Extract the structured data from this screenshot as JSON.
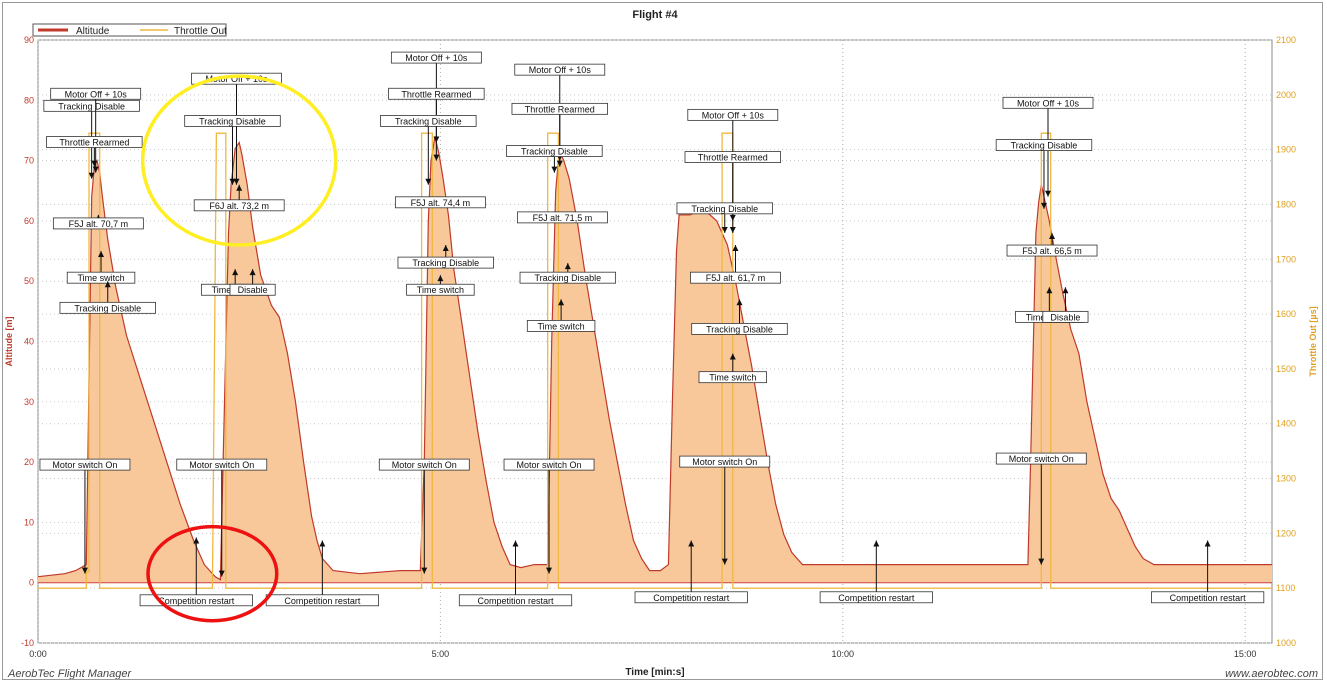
{
  "chart_data": {
    "type": "area",
    "title": "Flight #4",
    "xlabel": "Time [min:s]",
    "ylabel_left": "Altitude [m]",
    "ylabel_right": "Throttle Out [µs]",
    "footer_left": "AerobTec Flight Manager",
    "footer_right": "www.aerobtec.com",
    "x_ticks": [
      {
        "v": 0,
        "label": "0:00"
      },
      {
        "v": 300,
        "label": "5:00"
      },
      {
        "v": 600,
        "label": "10:00"
      },
      {
        "v": 900,
        "label": "15:00"
      }
    ],
    "xlim": [
      0,
      920
    ],
    "ylim_left": [
      -10,
      90
    ],
    "y_ticks_left": [
      -10,
      0,
      10,
      20,
      30,
      40,
      50,
      60,
      70,
      80,
      90
    ],
    "ylim_right": [
      1000,
      2100
    ],
    "y_ticks_right": [
      1000,
      1100,
      1200,
      1300,
      1400,
      1500,
      1600,
      1700,
      1800,
      1900,
      2000,
      2100
    ],
    "grid": true,
    "legend_position": "top-left",
    "colors": {
      "altitude_fill": "#f8c89a",
      "altitude_line": "#c0392b",
      "throttle": "#f0b840",
      "axis_left": "#c0392b",
      "axis_right": "#e0a020"
    },
    "series": [
      {
        "name": "Altitude",
        "kind": "area",
        "points": [
          [
            0,
            1
          ],
          [
            20,
            1.5
          ],
          [
            28,
            2
          ],
          [
            36,
            3
          ],
          [
            40,
            64
          ],
          [
            42,
            69
          ],
          [
            44,
            70
          ],
          [
            46,
            68
          ],
          [
            48,
            64
          ],
          [
            52,
            57
          ],
          [
            58,
            49
          ],
          [
            66,
            41
          ],
          [
            76,
            34
          ],
          [
            86,
            27
          ],
          [
            96,
            20
          ],
          [
            106,
            13
          ],
          [
            116,
            7
          ],
          [
            124,
            3
          ],
          [
            132,
            1
          ],
          [
            136,
            0.5
          ],
          [
            138,
            20
          ],
          [
            142,
            58
          ],
          [
            144,
            66
          ],
          [
            147,
            72
          ],
          [
            150,
            73
          ],
          [
            152,
            71
          ],
          [
            156,
            66
          ],
          [
            160,
            59
          ],
          [
            166,
            51
          ],
          [
            174,
            46
          ],
          [
            180,
            44
          ],
          [
            186,
            38
          ],
          [
            192,
            30
          ],
          [
            198,
            20
          ],
          [
            204,
            11
          ],
          [
            208,
            7
          ],
          [
            212,
            4
          ],
          [
            220,
            2
          ],
          [
            240,
            1.5
          ],
          [
            270,
            2
          ],
          [
            285,
            2
          ],
          [
            288,
            20
          ],
          [
            291,
            60
          ],
          [
            293,
            70
          ],
          [
            296,
            74
          ],
          [
            299,
            71
          ],
          [
            302,
            67
          ],
          [
            306,
            61
          ],
          [
            310,
            52
          ],
          [
            316,
            43
          ],
          [
            322,
            34
          ],
          [
            328,
            25
          ],
          [
            334,
            17
          ],
          [
            340,
            10
          ],
          [
            346,
            6
          ],
          [
            352,
            3
          ],
          [
            360,
            2.5
          ],
          [
            370,
            3
          ],
          [
            380,
            3
          ],
          [
            383,
            40
          ],
          [
            386,
            65
          ],
          [
            388,
            70
          ],
          [
            390,
            71
          ],
          [
            392,
            70
          ],
          [
            396,
            67
          ],
          [
            402,
            60
          ],
          [
            408,
            51
          ],
          [
            414,
            43
          ],
          [
            420,
            35
          ],
          [
            426,
            27
          ],
          [
            432,
            20
          ],
          [
            438,
            13
          ],
          [
            444,
            7
          ],
          [
            450,
            4
          ],
          [
            456,
            2
          ],
          [
            464,
            2
          ],
          [
            470,
            3
          ],
          [
            473,
            30
          ],
          [
            476,
            55
          ],
          [
            478,
            61
          ],
          [
            486,
            61
          ],
          [
            496,
            62
          ],
          [
            506,
            60
          ],
          [
            514,
            56
          ],
          [
            520,
            50
          ],
          [
            526,
            43
          ],
          [
            532,
            36
          ],
          [
            538,
            28
          ],
          [
            544,
            20
          ],
          [
            550,
            13
          ],
          [
            556,
            8
          ],
          [
            562,
            5
          ],
          [
            570,
            3
          ],
          [
            600,
            3
          ],
          [
            640,
            3
          ],
          [
            680,
            3
          ],
          [
            738,
            3
          ],
          [
            740,
            20
          ],
          [
            744,
            58
          ],
          [
            746,
            63
          ],
          [
            748,
            66
          ],
          [
            750,
            64
          ],
          [
            754,
            60
          ],
          [
            758,
            55
          ],
          [
            764,
            48
          ],
          [
            770,
            42
          ],
          [
            776,
            38
          ],
          [
            782,
            30
          ],
          [
            788,
            24
          ],
          [
            794,
            18
          ],
          [
            800,
            14
          ],
          [
            806,
            12
          ],
          [
            812,
            9
          ],
          [
            818,
            6
          ],
          [
            824,
            4
          ],
          [
            832,
            3
          ],
          [
            850,
            3
          ],
          [
            870,
            3
          ],
          [
            900,
            3
          ],
          [
            920,
            3
          ]
        ]
      },
      {
        "name": "Throttle Out",
        "kind": "step",
        "points": [
          [
            0,
            1100
          ],
          [
            34,
            1100
          ],
          [
            34,
            1100
          ],
          [
            36,
            1100
          ],
          [
            36,
            1130
          ],
          [
            38,
            1130
          ],
          [
            38,
            1930
          ],
          [
            46,
            1930
          ],
          [
            46,
            1100
          ],
          [
            130,
            1100
          ],
          [
            130,
            1100
          ],
          [
            133,
            1930
          ],
          [
            140,
            1930
          ],
          [
            140,
            1100
          ],
          [
            286,
            1100
          ],
          [
            286,
            1930
          ],
          [
            294,
            1930
          ],
          [
            294,
            1100
          ],
          [
            380,
            1100
          ],
          [
            380,
            1930
          ],
          [
            388,
            1930
          ],
          [
            388,
            1100
          ],
          [
            510,
            1100
          ],
          [
            510,
            1930
          ],
          [
            518,
            1930
          ],
          [
            518,
            1100
          ],
          [
            748,
            1100
          ],
          [
            748,
            1930
          ],
          [
            755,
            1930
          ],
          [
            755,
            1100
          ],
          [
            920,
            1100
          ]
        ]
      }
    ],
    "annotations": [
      {
        "text": "Motor switch On",
        "x": 35,
        "y": 1.5,
        "ly": 19.5
      },
      {
        "text": "Tracking Disable",
        "x": 40,
        "y": 67,
        "ly": 79
      },
      {
        "text": "Motor Off + 10s",
        "x": 43,
        "y": 68,
        "ly": 81
      },
      {
        "text": "Throttle Rearmed",
        "x": 42,
        "y": 69,
        "ly": 73
      },
      {
        "text": "F5J alt. 70,7 m",
        "x": 45,
        "y": 61,
        "ly": 59.5
      },
      {
        "text": "Time switch",
        "x": 47,
        "y": 55,
        "ly": 50.5
      },
      {
        "text": "Tracking Disable",
        "x": 52,
        "y": 50,
        "ly": 45.5
      },
      {
        "text": "Motor switch On",
        "x": 137,
        "y": 1,
        "ly": 19.5
      },
      {
        "text": "Competition restart",
        "x": 118,
        "y": 7.5,
        "ly": -3
      },
      {
        "text": "Motor Off + 10s",
        "x": 148,
        "y": 66,
        "ly": 83.5
      },
      {
        "text": "Tracking Disable",
        "x": 145,
        "y": 66,
        "ly": 76.5
      },
      {
        "text": "F6J alt. 73,2 m",
        "x": 150,
        "y": 66,
        "ly": 62.5
      },
      {
        "text": "Time switch",
        "x": 147,
        "y": 52,
        "ly": 48.5
      },
      {
        "text": "Disable",
        "x": 160,
        "y": 52,
        "ly": 48.5
      },
      {
        "text": "Competition restart",
        "x": 212,
        "y": 7,
        "ly": -3
      },
      {
        "text": "Motor switch On",
        "x": 288,
        "y": 1.5,
        "ly": 19.5
      },
      {
        "text": "Motor Off + 10s",
        "x": 297,
        "y": 73,
        "ly": 87
      },
      {
        "text": "Throttle Rearmed",
        "x": 297,
        "y": 70,
        "ly": 81
      },
      {
        "text": "Tracking Disable",
        "x": 291,
        "y": 66,
        "ly": 76.5
      },
      {
        "text": "F5J alt. 74,4 m",
        "x": 300,
        "y": 64,
        "ly": 63
      },
      {
        "text": "Tracking Disable",
        "x": 304,
        "y": 56,
        "ly": 53
      },
      {
        "text": "Time switch",
        "x": 300,
        "y": 51,
        "ly": 48.5
      },
      {
        "text": "Motor switch On",
        "x": 381,
        "y": 1.5,
        "ly": 19.5
      },
      {
        "text": "Competition restart",
        "x": 356,
        "y": 7,
        "ly": -3
      },
      {
        "text": "Motor Off + 10s",
        "x": 389,
        "y": 70,
        "ly": 85
      },
      {
        "text": "Throttle Rearmed",
        "x": 389,
        "y": 69,
        "ly": 78.5
      },
      {
        "text": "Tracking Disable",
        "x": 385,
        "y": 68,
        "ly": 71.5
      },
      {
        "text": "F5J alt. 71,5 m",
        "x": 391,
        "y": 60,
        "ly": 60.5
      },
      {
        "text": "Tracking Disable",
        "x": 395,
        "y": 53,
        "ly": 50.5
      },
      {
        "text": "Time switch",
        "x": 390,
        "y": 47,
        "ly": 42.5
      },
      {
        "text": "Motor switch On",
        "x": 512,
        "y": 3,
        "ly": 20
      },
      {
        "text": "Competition restart",
        "x": 487,
        "y": 7,
        "ly": -2.5
      },
      {
        "text": "Motor Off + 10s",
        "x": 518,
        "y": 60,
        "ly": 77.5
      },
      {
        "text": "Throttle Rearmed",
        "x": 518,
        "y": 58,
        "ly": 70.5
      },
      {
        "text": "Tracking Disable",
        "x": 512,
        "y": 58,
        "ly": 62
      },
      {
        "text": "F5J alt. 61,7 m",
        "x": 520,
        "y": 56,
        "ly": 50.5
      },
      {
        "text": "Tracking Disable",
        "x": 523,
        "y": 47,
        "ly": 42
      },
      {
        "text": "Time switch",
        "x": 518,
        "y": 38,
        "ly": 34
      },
      {
        "text": "Competition restart",
        "x": 625,
        "y": 7,
        "ly": -2.5
      },
      {
        "text": "Motor switch On",
        "x": 748,
        "y": 3,
        "ly": 20.5
      },
      {
        "text": "Motor Off + 10s",
        "x": 753,
        "y": 64,
        "ly": 79.5
      },
      {
        "text": "Tracking Disable",
        "x": 750,
        "y": 62,
        "ly": 72.5
      },
      {
        "text": "F5J alt. 66,5 m",
        "x": 756,
        "y": 58,
        "ly": 55
      },
      {
        "text": "Time switch",
        "x": 754,
        "y": 49,
        "ly": 44
      },
      {
        "text": "Disable",
        "x": 766,
        "y": 49,
        "ly": 44
      },
      {
        "text": "Competition restart",
        "x": 872,
        "y": 7,
        "ly": -2.5
      }
    ],
    "highlight_notes": [
      {
        "shape": "ellipse",
        "color": "#ffee22",
        "x": 150,
        "y": 70,
        "rx": 72,
        "ry": 14
      },
      {
        "shape": "ellipse",
        "color": "#ee1111",
        "x": 130,
        "y": 1.5,
        "rx": 48,
        "ry": 7.8
      }
    ]
  }
}
